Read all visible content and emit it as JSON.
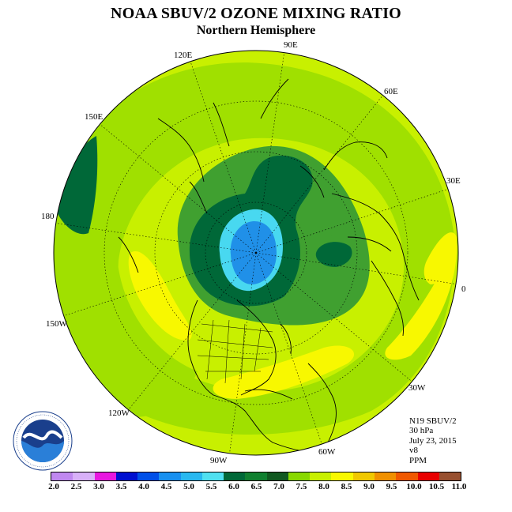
{
  "title": "NOAA SBUV/2 OZONE MIXING RATIO",
  "subtitle": "Northern Hemisphere",
  "longitude_labels": [
    "90E",
    "60E",
    "30E",
    "0",
    "30W",
    "60W",
    "90W",
    "120W",
    "150W",
    "180",
    "150E",
    "120E"
  ],
  "info": {
    "instrument": "N19 SBUV/2",
    "pressure": "30 hPa",
    "date": "July 23, 2015",
    "version": "v8",
    "units": "PPM"
  },
  "colorbar": {
    "ticks": [
      "2.0",
      "2.5",
      "3.0",
      "3.5",
      "4.0",
      "4.5",
      "5.0",
      "5.5",
      "6.0",
      "6.5",
      "7.0",
      "7.5",
      "8.0",
      "8.5",
      "9.0",
      "9.5",
      "10.0",
      "10.5",
      "11.0"
    ],
    "colors": [
      "#c088f0",
      "#d8b0f8",
      "#e818e0",
      "#0010d0",
      "#0050e8",
      "#1890f0",
      "#28b8f0",
      "#50e0f0",
      "#006838",
      "#108030",
      "#105820",
      "#88d800",
      "#c8f000",
      "#f8f800",
      "#f0c800",
      "#f09000",
      "#f05800",
      "#e80000",
      "#985030"
    ]
  },
  "map_colors": {
    "background_level": "#c8f000",
    "ocean_level": "#a0e000",
    "yellow_level": "#f8f800",
    "green_level": "#40a030",
    "dark_green_level": "#006838",
    "light_blue_level": "#48d8f0",
    "blue_level": "#2090e8"
  }
}
